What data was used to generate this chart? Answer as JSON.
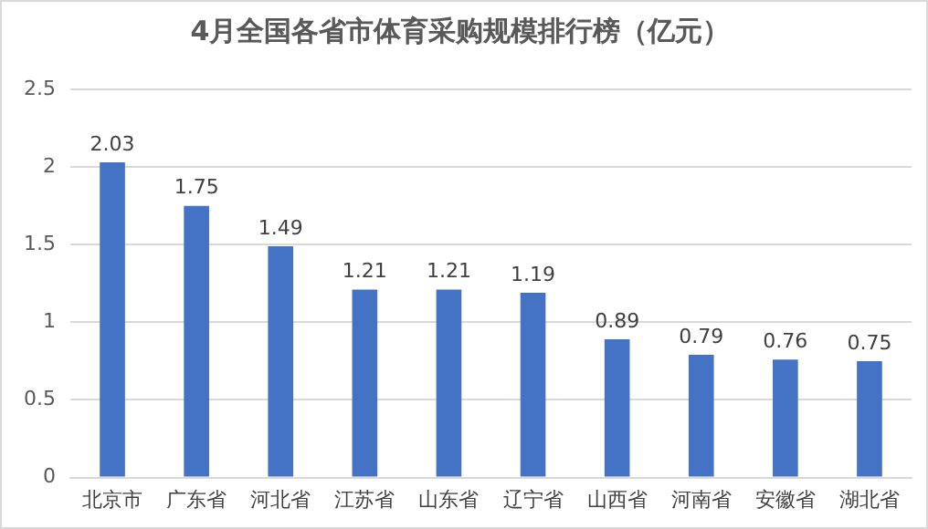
{
  "chart_data": {
    "type": "bar",
    "title": "4月全国各省市体育采购规模排行榜（亿元）",
    "categories": [
      "北京市",
      "广东省",
      "河北省",
      "江苏省",
      "山东省",
      "辽宁省",
      "山西省",
      "河南省",
      "安徽省",
      "湖北省"
    ],
    "values": [
      2.03,
      1.75,
      1.49,
      1.21,
      1.21,
      1.19,
      0.89,
      0.79,
      0.76,
      0.75
    ],
    "color": "#4472c4",
    "ylim": [
      0,
      2.5
    ],
    "yticks": [
      0,
      0.5,
      1,
      1.5,
      2,
      2.5
    ],
    "grid": "y",
    "data_labels": true,
    "legend": false
  }
}
